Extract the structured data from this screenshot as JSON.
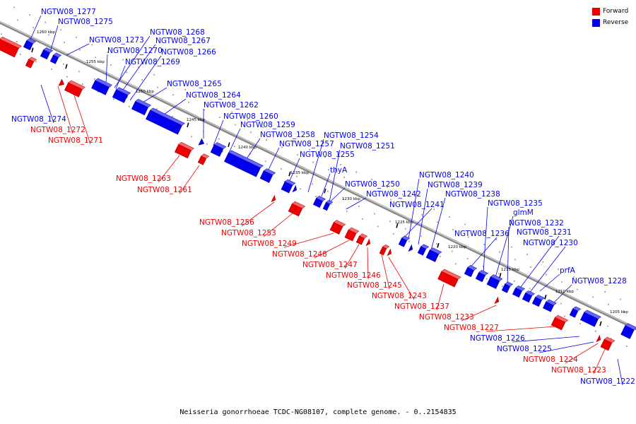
{
  "colors": {
    "forward": "#ee0000",
    "reverse": "#0000ee",
    "axis": "#888888"
  },
  "legend": {
    "forward": "Forward",
    "reverse": "Reverse"
  },
  "caption": "Neisseria gonorrhoeae TCDC-NG08107, complete genome. - 0..2154835",
  "ticks": [
    "1260 kbp",
    "1255 kbp",
    "1250 kbp",
    "1245 kbp",
    "1240 kbp",
    "1235 kbp",
    "1230 kbp",
    "1225 kbp",
    "1220 kbp",
    "1215 kbp",
    "1210 kbp",
    "1205 kbp"
  ],
  "genes_reverse": [
    "NGTW08_1277",
    "NGTW08_1275",
    "NGTW08_1273",
    "NGTW08_1268",
    "NGTW08_1267",
    "NGTW08_1270",
    "NGTW08_1266",
    "NGTW08_1269",
    "NGTW08_1265",
    "NGTW08_1264",
    "NGTW08_1262",
    "NGTW08_1260",
    "NGTW08_1259",
    "NGTW08_1258",
    "NGTW08_1254",
    "NGTW08_1257",
    "NGTW08_1251",
    "NGTW08_1255",
    "thyA",
    "NGTW08_1250",
    "NGTW08_1242",
    "NGTW08_1240",
    "NGTW08_1239",
    "NGTW08_1238",
    "NGTW08_1241",
    "NGTW08_1235",
    "glmM",
    "NGTW08_1232",
    "NGTW08_1236",
    "NGTW08_1231",
    "NGTW08_1230",
    "prfA",
    "NGTW08_1228",
    "NGTW08_1274",
    "NGTW08_1226",
    "NGTW08_1225",
    "NGTW08_1222"
  ],
  "genes_forward": [
    "NGTW08_1272",
    "NGTW08_1271",
    "NGTW08_1263",
    "NGTW08_1261",
    "NGTW08_1256",
    "NGTW08_1253",
    "NGTW08_1249",
    "NGTW08_1248",
    "NGTW08_1247",
    "NGTW08_1246",
    "NGTW08_1245",
    "NGTW08_1243",
    "NGTW08_1237",
    "NGTW08_1233",
    "NGTW08_1227",
    "NGTW08_1224",
    "NGTW08_1223"
  ]
}
